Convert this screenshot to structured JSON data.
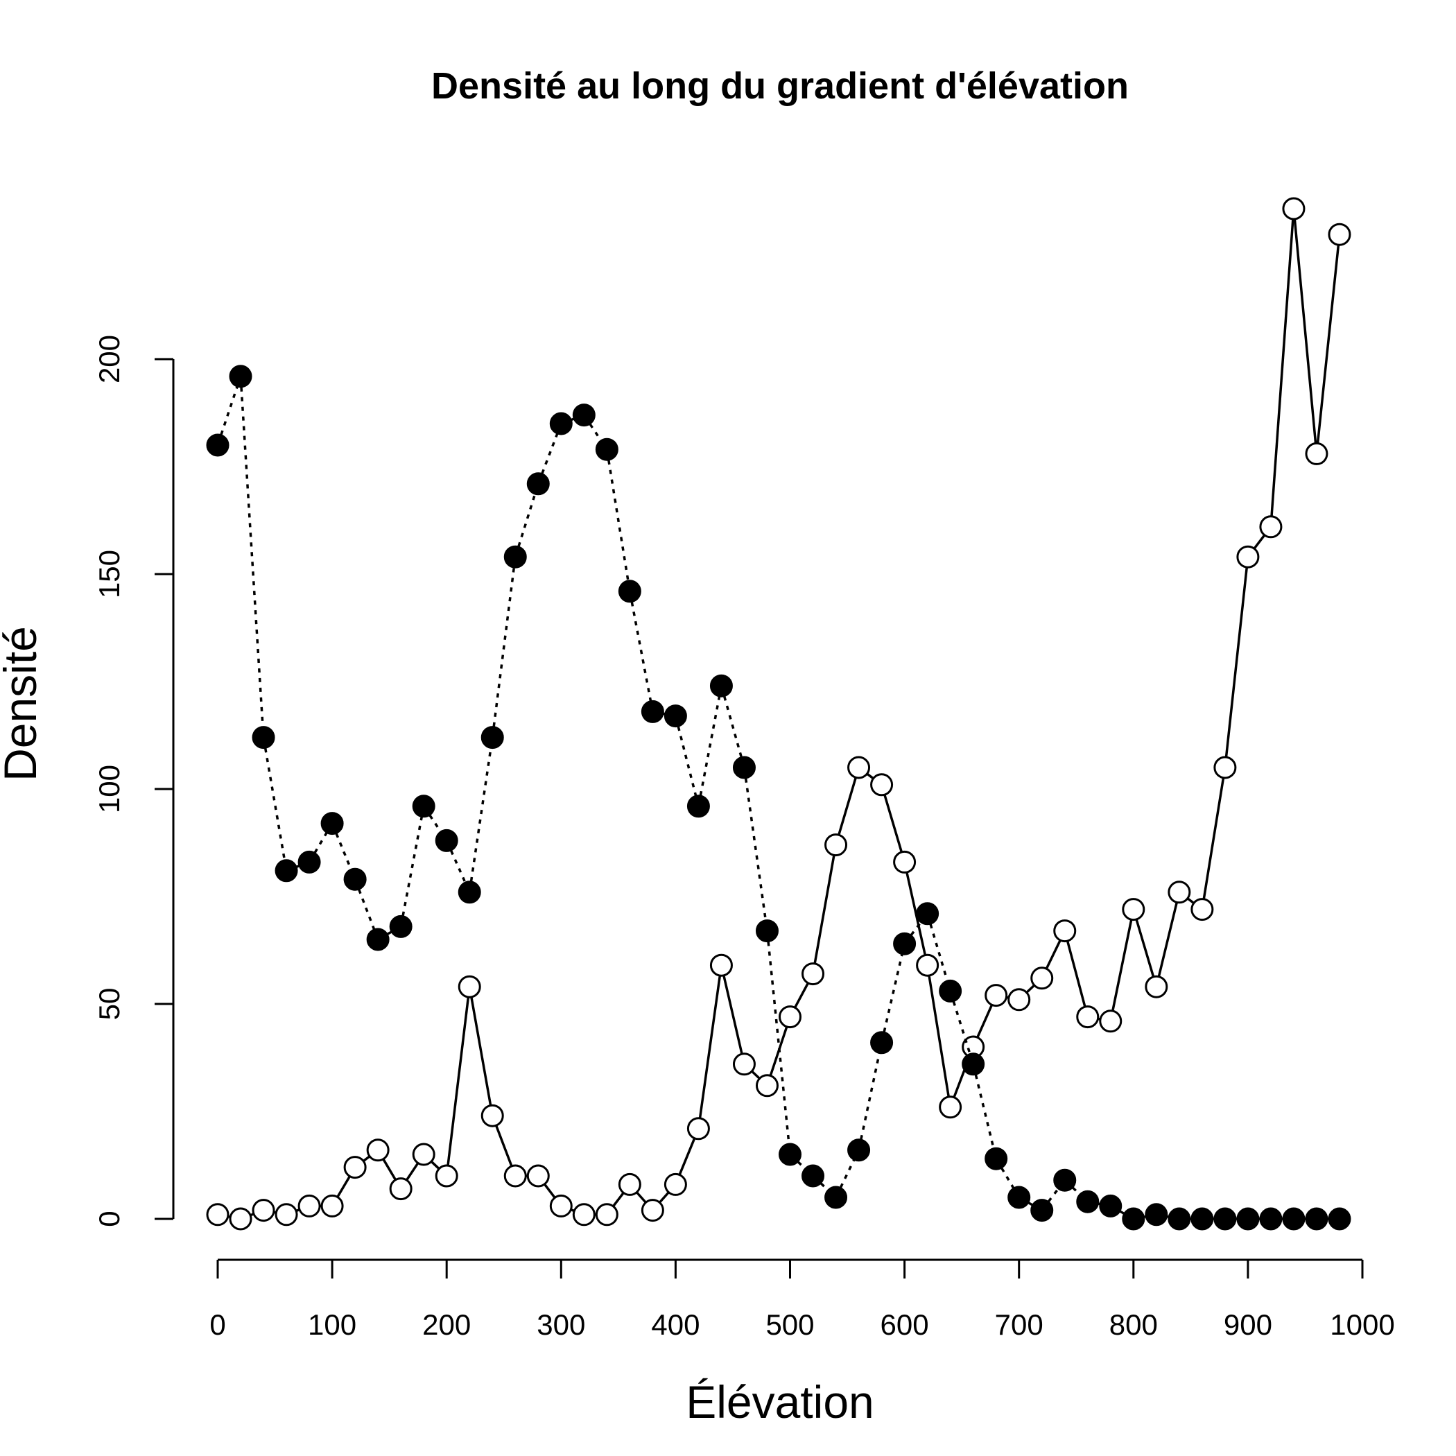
{
  "chart_data": {
    "type": "line",
    "title": "Densité au long du gradient d'élévation",
    "xlabel": "Élévation",
    "ylabel": "Densité",
    "xlim": [
      0,
      1000
    ],
    "ylim": [
      0,
      200
    ],
    "x_ticks": [
      0,
      100,
      200,
      300,
      400,
      500,
      600,
      700,
      800,
      900,
      1000
    ],
    "y_ticks": [
      0,
      50,
      100,
      150,
      200
    ],
    "grid": false,
    "x": [
      0,
      20,
      40,
      60,
      80,
      100,
      120,
      140,
      160,
      180,
      200,
      220,
      240,
      260,
      280,
      300,
      320,
      340,
      360,
      380,
      400,
      420,
      440,
      460,
      480,
      500,
      520,
      540,
      560,
      580,
      600,
      620,
      640,
      660,
      680,
      700,
      720,
      740,
      760,
      780,
      800,
      820,
      840,
      860,
      880,
      900,
      920,
      940,
      960,
      980
    ],
    "series": [
      {
        "marker": "filled-circle",
        "line": "dotted",
        "color": "#000000",
        "values": [
          180,
          196,
          112,
          81,
          83,
          92,
          79,
          65,
          68,
          96,
          88,
          76,
          112,
          154,
          171,
          185,
          187,
          179,
          146,
          118,
          117,
          96,
          124,
          105,
          67,
          15,
          10,
          5,
          16,
          41,
          64,
          71,
          53,
          36,
          14,
          5,
          2,
          9,
          4,
          3,
          0,
          1,
          0,
          0,
          0,
          0,
          0,
          0,
          0,
          0
        ]
      },
      {
        "marker": "open-circle",
        "line": "solid",
        "color": "#000000",
        "values": [
          1,
          0,
          2,
          1,
          3,
          3,
          12,
          16,
          7,
          15,
          10,
          54,
          24,
          10,
          10,
          3,
          1,
          1,
          8,
          2,
          8,
          21,
          59,
          36,
          31,
          47,
          57,
          87,
          105,
          101,
          83,
          59,
          26,
          40,
          52,
          51,
          56,
          67,
          47,
          46,
          72,
          54,
          76,
          72,
          105,
          154,
          161,
          235,
          178,
          229
        ]
      }
    ]
  }
}
